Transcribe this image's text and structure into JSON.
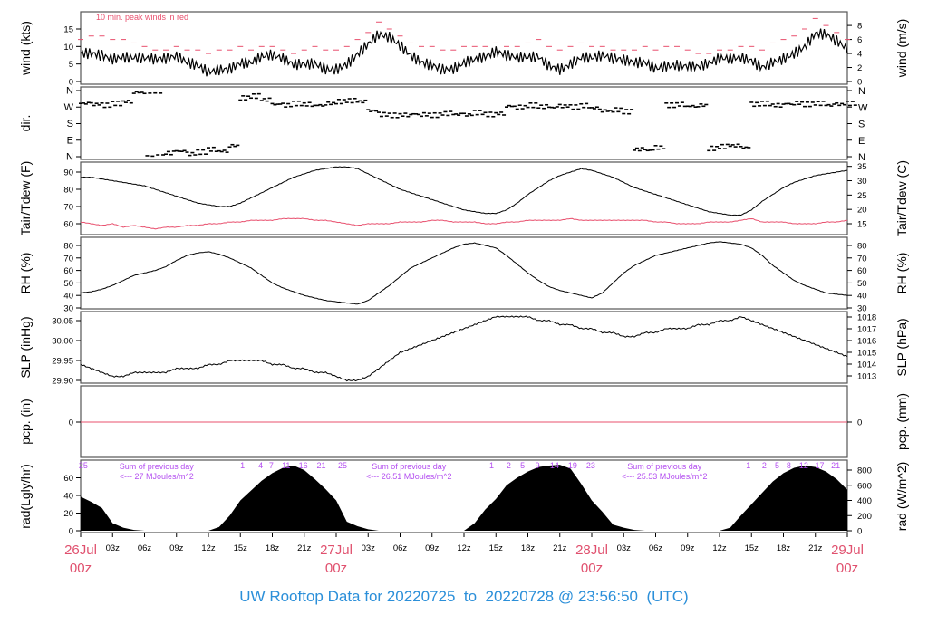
{
  "title": "UW Rooftop Data for 20220725  to  20220728 @ 23:56:50  (UTC)",
  "colors": {
    "title": "#2b8fd9",
    "peak": "#e8506e",
    "dew": "#e8506e",
    "solar_labels": "#b44ff0",
    "day_labels": "#e0506e",
    "line": "#000000"
  },
  "chart_data": [
    {
      "type": "line",
      "id": "wind",
      "ylabel": "wind (kts)",
      "ylabel_right": "wind (m/s)",
      "ylim": [
        0,
        18
      ],
      "yticks": [
        0,
        5,
        10,
        15
      ],
      "yticks_right": [
        0,
        2,
        4,
        6,
        8
      ],
      "annotation": "10 min. peak winds in red",
      "series": [
        {
          "values": [
            8,
            9,
            9,
            8,
            8,
            7,
            6,
            5,
            5,
            6,
            5,
            5,
            4,
            5,
            5,
            6,
            5,
            6,
            6,
            5,
            4,
            5,
            6,
            5,
            5,
            6,
            8,
            10,
            12,
            11,
            9,
            7,
            6,
            6,
            5,
            5,
            6,
            6,
            6,
            7,
            6,
            6,
            7,
            8,
            6,
            5,
            6,
            7,
            6,
            6,
            5,
            5,
            5,
            6,
            5,
            6,
            6,
            5,
            4,
            4,
            5,
            5,
            6,
            6,
            5,
            7,
            8,
            9,
            10,
            13,
            12,
            10,
            8
          ]
        },
        {
          "values": [
            12,
            13,
            13,
            12,
            12,
            11,
            10,
            9,
            9,
            10,
            9,
            9,
            8,
            9,
            9,
            10,
            9,
            10,
            10,
            9,
            8,
            9,
            10,
            9,
            9,
            10,
            12,
            14,
            17,
            15,
            13,
            11,
            10,
            10,
            9,
            9,
            10,
            10,
            10,
            11,
            10,
            10,
            11,
            12,
            10,
            9,
            10,
            11,
            10,
            10,
            9,
            9,
            9,
            10,
            9,
            10,
            10,
            9,
            8,
            8,
            9,
            9,
            10,
            10,
            9,
            11,
            12,
            13,
            15,
            18,
            16,
            14,
            12
          ]
        }
      ]
    },
    {
      "type": "scatter",
      "id": "dir",
      "ylabel": "dir.",
      "yticks": [
        "N",
        "E",
        "S",
        "W",
        "N"
      ],
      "ylim": [
        0,
        360
      ],
      "values": [
        290,
        285,
        280,
        290,
        300,
        350,
        355,
        358,
        20,
        30,
        15,
        25,
        40,
        30,
        60,
        320,
        330,
        310,
        285,
        280,
        290,
        285,
        280,
        290,
        300,
        305,
        300,
        250,
        230,
        225,
        228,
        232,
        230,
        226,
        235,
        230,
        228,
        240,
        230,
        235,
        275,
        270,
        280,
        272,
        268,
        275,
        270,
        278,
        265,
        250,
        255,
        245,
        40,
        35,
        50,
        280,
        285,
        275,
        280,
        45,
        55,
        60,
        50,
        285,
        290,
        280,
        288,
        292,
        285,
        290,
        280,
        285,
        290
      ]
    },
    {
      "type": "line",
      "id": "temp",
      "ylabel": "Tair/Tdew (F)",
      "ylabel_right": "Tair/Tdew (C)",
      "ylim": [
        54,
        95
      ],
      "yticks": [
        60,
        70,
        80,
        90
      ],
      "yticks_right": [
        15,
        20,
        25,
        30,
        35
      ],
      "series": [
        {
          "values": [
            87,
            87,
            86,
            85,
            84,
            83,
            82,
            80,
            78,
            76,
            74,
            72,
            71,
            70,
            70,
            72,
            75,
            78,
            81,
            84,
            87,
            89,
            91,
            92,
            93,
            93,
            92,
            89,
            86,
            83,
            80,
            78,
            76,
            74,
            72,
            70,
            68,
            67,
            66,
            66,
            68,
            72,
            77,
            81,
            85,
            88,
            90,
            92,
            91,
            89,
            87,
            84,
            81,
            79,
            77,
            75,
            73,
            71,
            69,
            67,
            66,
            65,
            65,
            68,
            73,
            77,
            81,
            84,
            86,
            88,
            89,
            90,
            91
          ]
        },
        {
          "values": [
            61,
            60,
            59,
            60,
            58,
            59,
            58,
            57,
            58,
            58,
            59,
            59,
            60,
            60,
            61,
            61,
            62,
            62,
            62,
            63,
            63,
            63,
            62,
            62,
            61,
            60,
            59,
            60,
            60,
            60,
            61,
            61,
            61,
            62,
            62,
            61,
            61,
            61,
            60,
            60,
            61,
            61,
            62,
            62,
            62,
            62,
            63,
            62,
            62,
            62,
            62,
            62,
            62,
            62,
            61,
            61,
            60,
            60,
            60,
            61,
            61,
            61,
            62,
            63,
            61,
            61,
            61,
            60,
            60,
            60,
            61,
            61,
            62
          ]
        }
      ]
    },
    {
      "type": "line",
      "id": "rh",
      "ylabel": "RH (%)",
      "ylabel_right": "RH (%)",
      "ylim": [
        30,
        86
      ],
      "yticks": [
        30,
        40,
        50,
        60,
        70,
        80
      ],
      "yticks_right": [
        30,
        40,
        50,
        60,
        70,
        80
      ],
      "series": [
        {
          "values": [
            42,
            43,
            45,
            48,
            52,
            56,
            58,
            60,
            63,
            68,
            72,
            74,
            75,
            73,
            70,
            66,
            62,
            56,
            50,
            46,
            43,
            40,
            38,
            36,
            35,
            34,
            33,
            36,
            42,
            48,
            55,
            62,
            66,
            70,
            74,
            78,
            81,
            82,
            80,
            78,
            72,
            65,
            58,
            52,
            47,
            44,
            42,
            40,
            38,
            42,
            50,
            58,
            64,
            68,
            72,
            74,
            76,
            78,
            80,
            82,
            83,
            82,
            81,
            78,
            72,
            64,
            58,
            52,
            48,
            45,
            42,
            41,
            40
          ]
        }
      ]
    },
    {
      "type": "line",
      "id": "slp",
      "ylabel": "SLP (inHg)",
      "ylabel_right": "SLP (hPa)",
      "ylim": [
        29.895,
        30.065
      ],
      "yticks": [
        29.9,
        29.95,
        30.0,
        30.05
      ],
      "yticks_right": [
        1013,
        1014,
        1015,
        1016,
        1017,
        1018
      ],
      "series": [
        {
          "values": [
            29.94,
            29.93,
            29.92,
            29.91,
            29.91,
            29.92,
            29.92,
            29.92,
            29.92,
            29.93,
            29.93,
            29.93,
            29.94,
            29.94,
            29.95,
            29.95,
            29.95,
            29.95,
            29.94,
            29.94,
            29.93,
            29.93,
            29.92,
            29.92,
            29.91,
            29.9,
            29.9,
            29.91,
            29.93,
            29.95,
            29.97,
            29.98,
            29.99,
            30.0,
            30.01,
            30.02,
            30.03,
            30.04,
            30.05,
            30.06,
            30.06,
            30.06,
            30.06,
            30.05,
            30.05,
            30.04,
            30.04,
            30.03,
            30.03,
            30.02,
            30.02,
            30.01,
            30.01,
            30.02,
            30.02,
            30.03,
            30.03,
            30.03,
            30.04,
            30.04,
            30.05,
            30.05,
            30.06,
            30.05,
            30.04,
            30.03,
            30.02,
            30.01,
            30.0,
            29.99,
            29.98,
            29.97,
            29.96
          ]
        }
      ]
    },
    {
      "type": "line",
      "id": "pcp",
      "ylabel": "pcp. (in)",
      "ylabel_right": "pcp. (mm)",
      "ylim": [
        -1,
        1
      ],
      "yticks": [
        0
      ],
      "yticks_right": [
        0
      ],
      "series": [
        {
          "values": [
            0,
            0
          ]
        }
      ]
    },
    {
      "type": "area",
      "id": "rad",
      "ylabel": "rad(Lgly/hr)",
      "ylabel_right": "rad (W/m^2)",
      "ylim": [
        0,
        880
      ],
      "yticks": [
        0,
        20,
        40,
        60
      ],
      "yticks_right": [
        0,
        200,
        400,
        600,
        800
      ],
      "series": [
        {
          "values": [
            450,
            380,
            300,
            100,
            40,
            10,
            0,
            0,
            0,
            0,
            0,
            0,
            0,
            50,
            200,
            400,
            530,
            660,
            760,
            830,
            860,
            800,
            680,
            550,
            400,
            120,
            60,
            20,
            0,
            0,
            0,
            0,
            0,
            0,
            0,
            0,
            0,
            100,
            280,
            420,
            600,
            700,
            780,
            840,
            860,
            870,
            820,
            620,
            400,
            250,
            80,
            40,
            10,
            0,
            0,
            0,
            0,
            0,
            0,
            0,
            0,
            40,
            200,
            350,
            500,
            650,
            760,
            830,
            860,
            840,
            780,
            680,
            540
          ]
        }
      ],
      "hour_labels": [
        {
          "hour": 0.25,
          "label": "25"
        },
        {
          "hour": 15.2,
          "label": "1"
        },
        {
          "hour": 16.9,
          "label": "4"
        },
        {
          "hour": 17.9,
          "label": "7"
        },
        {
          "hour": 19.3,
          "label": "11"
        },
        {
          "hour": 20.9,
          "label": "16"
        },
        {
          "hour": 22.6,
          "label": "21"
        },
        {
          "hour": 24.6,
          "label": "25"
        },
        {
          "hour": 38.6,
          "label": "1"
        },
        {
          "hour": 40.2,
          "label": "2"
        },
        {
          "hour": 41.5,
          "label": "5"
        },
        {
          "hour": 42.9,
          "label": "9"
        },
        {
          "hour": 44.5,
          "label": "14"
        },
        {
          "hour": 46.2,
          "label": "19"
        },
        {
          "hour": 47.9,
          "label": "23"
        },
        {
          "hour": 62.7,
          "label": "1"
        },
        {
          "hour": 64.2,
          "label": "2"
        },
        {
          "hour": 65.4,
          "label": "5"
        },
        {
          "hour": 66.5,
          "label": "8"
        },
        {
          "hour": 67.9,
          "label": "12"
        },
        {
          "hour": 69.4,
          "label": "17"
        },
        {
          "hour": 70.9,
          "label": "21"
        }
      ],
      "sums": [
        {
          "hour": 3.3,
          "line1": "Sum of previous day",
          "line2": "<--- 27 MJoules/m^2"
        },
        {
          "hour": 27,
          "line1": "Sum of previous day",
          "line2": "<--- 26.51 MJoules/m^2"
        },
        {
          "hour": 51,
          "line1": "Sum of previous day",
          "line2": "<--- 25.53 MJoules/m^2"
        }
      ]
    }
  ],
  "x_axis": {
    "hours": [
      0,
      72
    ],
    "hour_ticks": [
      "03z",
      "06z",
      "09z",
      "12z",
      "15z",
      "18z",
      "21z"
    ],
    "days": [
      {
        "hour": 0,
        "date": "26Jul",
        "time": "00z"
      },
      {
        "hour": 24,
        "date": "27Jul",
        "time": "00z"
      },
      {
        "hour": 48,
        "date": "28Jul",
        "time": "00z"
      },
      {
        "hour": 72,
        "date": "29Jul",
        "time": "00z"
      }
    ]
  }
}
